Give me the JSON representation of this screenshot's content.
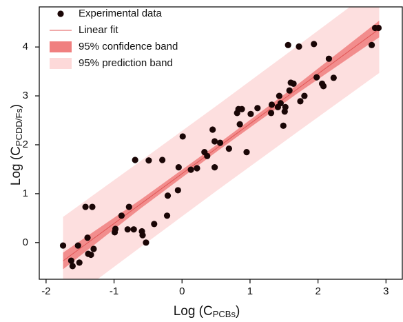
{
  "chart_data": {
    "type": "scatter",
    "x_label": {
      "text": "Log (C",
      "sub": "PCBs",
      "end": ")"
    },
    "y_label": {
      "text": "Log (C",
      "sub": "PCDD/Fs",
      "end": ")"
    },
    "xlim": [
      -2.1,
      3.24
    ],
    "ylim": [
      -0.75,
      4.82
    ],
    "xticks": [
      -2,
      -1,
      0,
      1,
      2,
      3
    ],
    "yticks": [
      0,
      1,
      2,
      3,
      4
    ],
    "legend": "top-left",
    "series": [
      {
        "name": "Experimental data",
        "color": "#1a0606",
        "x": [
          -1.75,
          -1.63,
          -1.61,
          -1.53,
          -1.51,
          -1.42,
          -1.39,
          -1.38,
          -1.34,
          -1.32,
          -1.3,
          -0.99,
          -0.98,
          -0.89,
          -0.8,
          -0.78,
          -0.71,
          -0.69,
          -0.59,
          -0.58,
          -0.53,
          -0.49,
          -0.41,
          -0.29,
          -0.22,
          -0.21,
          -0.06,
          -0.05,
          0.01,
          0.13,
          0.22,
          0.33,
          0.37,
          0.45,
          0.48,
          0.48,
          0.56,
          0.69,
          0.81,
          0.83,
          0.85,
          0.88,
          0.95,
          1.01,
          1.11,
          1.31,
          1.32,
          1.41,
          1.43,
          1.45,
          1.49,
          1.51,
          1.52,
          1.56,
          1.58,
          1.6,
          1.64,
          1.72,
          1.74,
          1.8,
          1.94,
          1.98,
          2.06,
          2.08,
          2.16,
          2.23,
          2.79,
          2.84,
          2.89
        ],
        "values": [
          -0.06,
          -0.37,
          -0.48,
          -0.06,
          -0.41,
          0.73,
          0.1,
          -0.23,
          -0.25,
          0.73,
          -0.13,
          0.21,
          0.28,
          0.55,
          0.27,
          0.73,
          0.27,
          1.69,
          0.23,
          0.15,
          0.0,
          1.68,
          0.38,
          1.69,
          0.55,
          0.96,
          1.07,
          1.54,
          2.17,
          1.49,
          1.52,
          1.85,
          1.77,
          2.31,
          2.07,
          1.54,
          2.04,
          1.92,
          2.65,
          2.73,
          2.42,
          2.73,
          1.85,
          2.63,
          2.75,
          2.65,
          2.82,
          2.77,
          3.0,
          2.85,
          2.39,
          2.68,
          2.77,
          4.04,
          3.11,
          3.27,
          3.25,
          4.01,
          2.89,
          3.0,
          4.06,
          3.38,
          3.25,
          3.2,
          3.76,
          3.37,
          4.04,
          4.39,
          4.39
        ]
      },
      {
        "name": "Linear fit",
        "type": "line",
        "color": "#e05555",
        "x": [
          -1.75,
          2.9
        ],
        "values": [
          -0.375,
          4.368
        ]
      },
      {
        "name": "95% confidence band",
        "type": "band",
        "color": "#f07f7f",
        "x": [
          -1.75,
          -0.6,
          0.55,
          1.7,
          2.9
        ],
        "lower": [
          -0.545,
          0.708,
          1.901,
          3.054,
          4.198
        ],
        "upper": [
          -0.205,
          0.888,
          2.041,
          3.234,
          4.538
        ]
      },
      {
        "name": "95% prediction band",
        "type": "band",
        "color": "#fdd9d9",
        "x": [
          -1.75,
          -0.6,
          0.55,
          1.7,
          2.9
        ],
        "lower": [
          -1.275,
          -0.082,
          1.101,
          2.264,
          3.468
        ],
        "upper": [
          0.525,
          1.678,
          2.841,
          4.024,
          5.268
        ]
      }
    ]
  }
}
